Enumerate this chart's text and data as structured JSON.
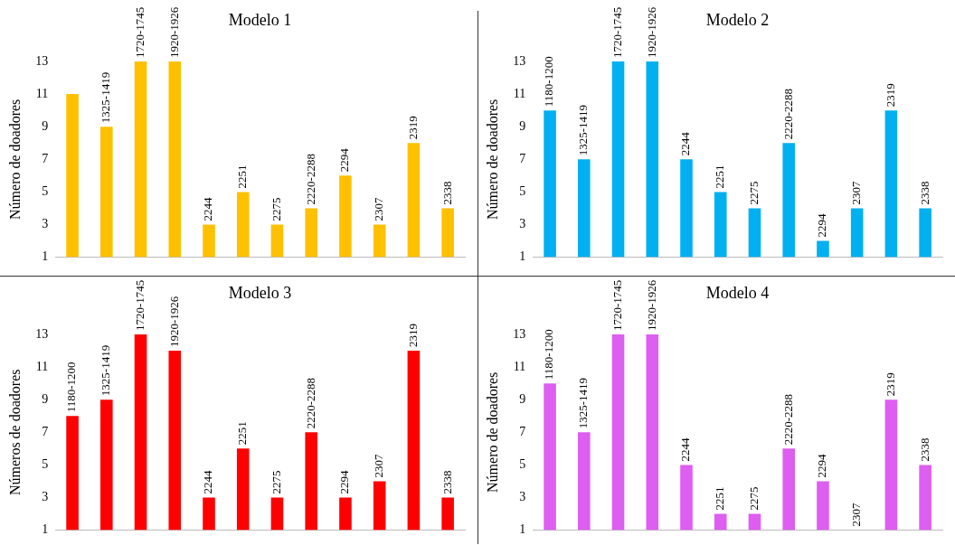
{
  "chart_data": [
    {
      "type": "bar",
      "title": "Modelo 1",
      "ylabel": "Número de doadores",
      "categories": [
        null,
        "1325-1419",
        "1720-1745",
        "1920-1926",
        "2244",
        "2251",
        "2275",
        "2220-2288",
        "2294",
        "2307",
        "2319",
        "2338"
      ],
      "values": [
        11,
        9,
        13,
        13,
        3,
        5,
        3,
        4,
        6,
        3,
        8,
        4
      ],
      "color": "#ffc000",
      "ylim": [
        1,
        13
      ],
      "yticks": [
        1,
        3,
        5,
        7,
        9,
        11,
        13
      ],
      "tick_labels": "y",
      "grid": false,
      "legend": false
    },
    {
      "type": "bar",
      "title": "Modelo 2",
      "ylabel": "Número de doadores",
      "categories": [
        "1180-1200",
        "1325-1419",
        "1720-1745",
        "1920-1926",
        "2244",
        "2251",
        "2275",
        "2220-2288",
        "2294",
        "2307",
        "2319",
        "2338"
      ],
      "values": [
        10,
        7,
        13,
        13,
        7,
        5,
        4,
        8,
        2,
        4,
        10,
        4
      ],
      "color": "#00b0f0",
      "ylim": [
        1,
        13
      ],
      "yticks": [
        1,
        3,
        5,
        7,
        9,
        11,
        13
      ],
      "tick_labels": "y",
      "grid": false,
      "legend": false
    },
    {
      "type": "bar",
      "title": "Modelo 3",
      "ylabel": "Números de doadores",
      "categories": [
        "1180-1200",
        "1325-1419",
        "1720-1745",
        "1920-1926",
        "2244",
        "2251",
        "2275",
        "2220-2288",
        "2294",
        "2307",
        "2319",
        "2338"
      ],
      "values": [
        8,
        9,
        13,
        12,
        3,
        6,
        3,
        7,
        3,
        4,
        12,
        3
      ],
      "color": "#ff0000",
      "ylim": [
        1,
        13
      ],
      "yticks": [
        1,
        3,
        5,
        7,
        9,
        11,
        13
      ],
      "tick_labels": "y",
      "grid": false,
      "legend": false
    },
    {
      "type": "bar",
      "title": "Modelo 4",
      "ylabel": "Número de doadores",
      "categories": [
        "1180-1200",
        "1325-1419",
        "1720-1745",
        "1920-1926",
        "2244",
        "2251",
        "2275",
        "2220-2288",
        "2294",
        "2307",
        "2319",
        "2338"
      ],
      "values": [
        10,
        7,
        13,
        13,
        5,
        2,
        2,
        6,
        4,
        1,
        9,
        5
      ],
      "color": "#dd5ef0",
      "ylim": [
        1,
        13
      ],
      "yticks": [
        1,
        3,
        5,
        7,
        9,
        11,
        13
      ],
      "tick_labels": "y",
      "grid": false,
      "legend": false
    }
  ]
}
